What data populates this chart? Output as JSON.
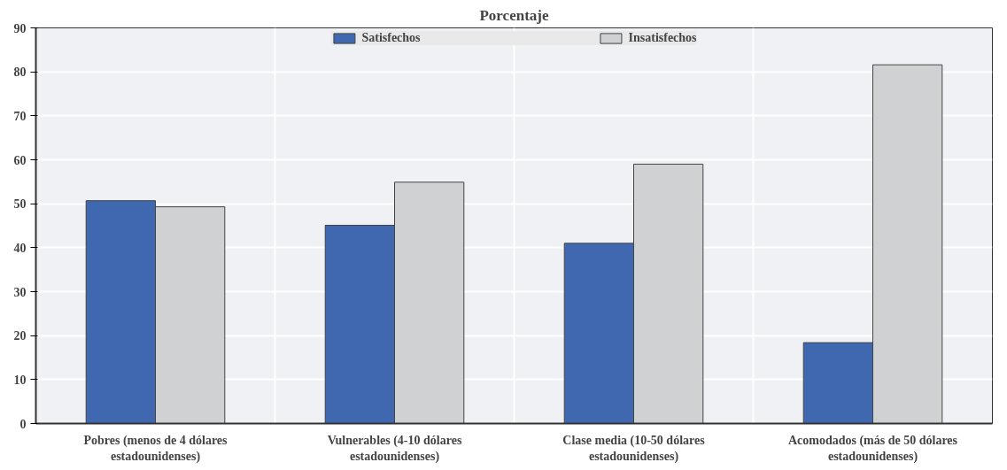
{
  "chart_data": {
    "type": "bar",
    "title": "Porcentaje",
    "categories": [
      "Pobres (menos de 4 dólares estadounidenses)",
      "Vulnerables (4-10 dólares estadounidenses)",
      "Clase media (10-50 dólares estadounidenses)",
      "Acomodados (más de 50 dólares estadounidenses)"
    ],
    "series": [
      {
        "name": "Satisfechos",
        "color": "#3f68b1",
        "values": [
          50.7,
          45.1,
          41.0,
          18.4
        ]
      },
      {
        "name": "Insatisfechos",
        "color": "#d0d1d3",
        "values": [
          49.3,
          54.9,
          59.0,
          81.6
        ]
      }
    ],
    "ylim": [
      0,
      90
    ],
    "yticks": [
      0,
      10,
      20,
      30,
      40,
      50,
      60,
      70,
      80,
      90
    ],
    "grid": true,
    "legend": "top"
  }
}
